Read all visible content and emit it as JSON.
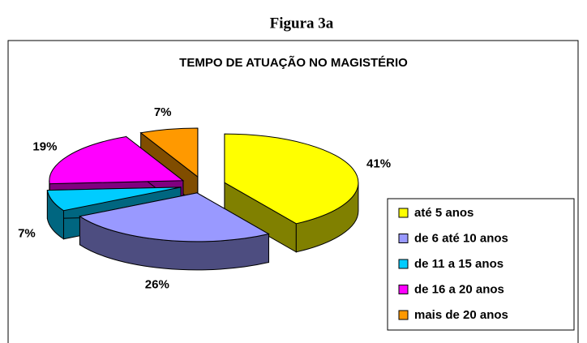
{
  "caption": "Figura 3a",
  "chart_data": {
    "type": "pie",
    "title": "TEMPO DE ATUAÇÃO NO MAGISTÉRIO",
    "categories": [
      "até 5 anos",
      "de 6 até 10 anos",
      "de 11 a 15 anos",
      "de 16 a 20 anos",
      "mais de 20 anos"
    ],
    "values": [
      41,
      26,
      7,
      19,
      7
    ],
    "value_labels": [
      "41%",
      "26%",
      "7%",
      "19%",
      "7%"
    ],
    "colors": [
      "#ffff00",
      "#9999ff",
      "#00ccff",
      "#ff00ff",
      "#ff9900"
    ]
  }
}
